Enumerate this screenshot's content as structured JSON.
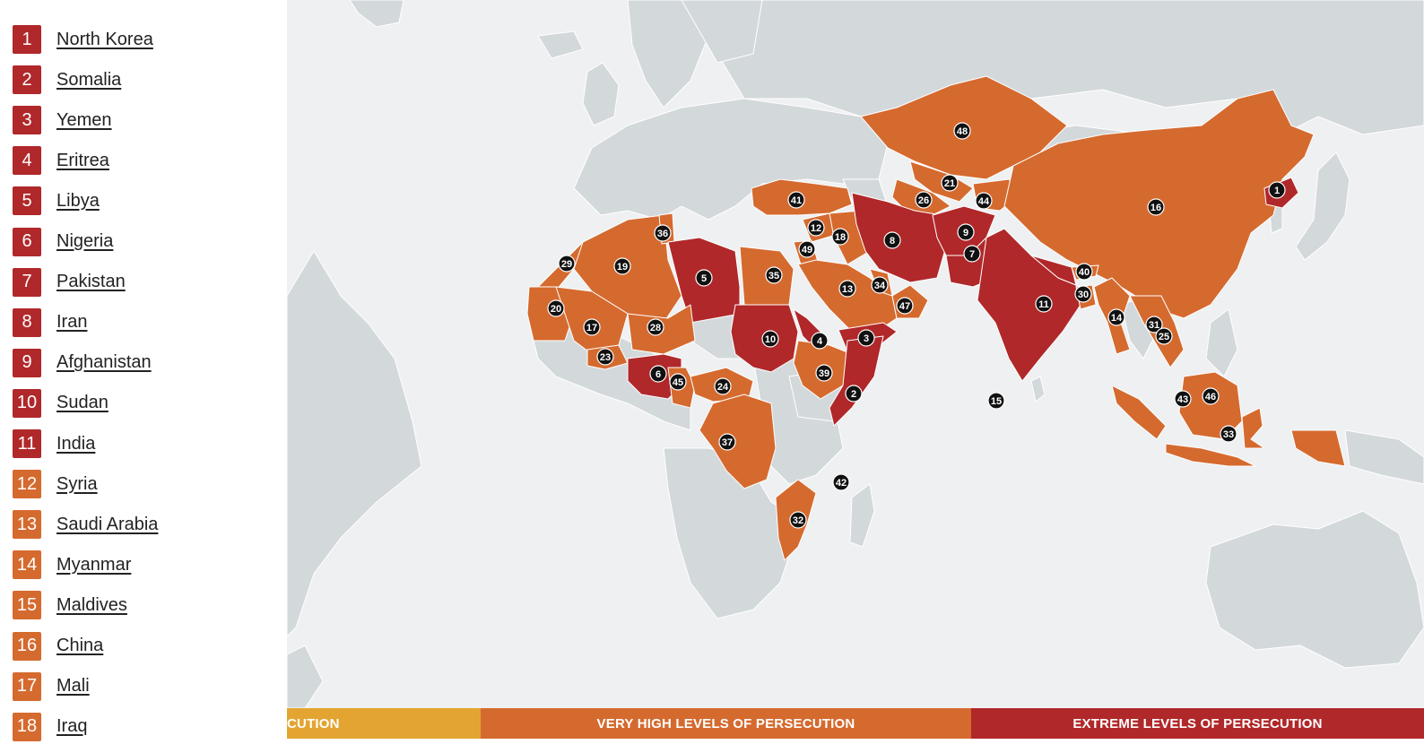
{
  "colors": {
    "extreme": "#B0282A",
    "very_high": "#D56A2F",
    "high": "#E4A431",
    "land": "#D3D8DB",
    "ocean": "#EEF0F1",
    "marker": "#111111"
  },
  "rankings": [
    {
      "rank": "1",
      "name": "North Korea",
      "level": "extreme"
    },
    {
      "rank": "2",
      "name": "Somalia",
      "level": "extreme"
    },
    {
      "rank": "3",
      "name": "Yemen",
      "level": "extreme"
    },
    {
      "rank": "4",
      "name": "Eritrea",
      "level": "extreme"
    },
    {
      "rank": "5",
      "name": "Libya",
      "level": "extreme"
    },
    {
      "rank": "6",
      "name": "Nigeria",
      "level": "extreme"
    },
    {
      "rank": "7",
      "name": "Pakistan",
      "level": "extreme"
    },
    {
      "rank": "8",
      "name": "Iran",
      "level": "extreme"
    },
    {
      "rank": "9",
      "name": "Afghanistan",
      "level": "extreme"
    },
    {
      "rank": "10",
      "name": "Sudan",
      "level": "extreme"
    },
    {
      "rank": "11",
      "name": "India",
      "level": "extreme"
    },
    {
      "rank": "12",
      "name": "Syria",
      "level": "very_high"
    },
    {
      "rank": "13",
      "name": "Saudi Arabia",
      "level": "very_high"
    },
    {
      "rank": "14",
      "name": "Myanmar",
      "level": "very_high"
    },
    {
      "rank": "15",
      "name": "Maldives",
      "level": "very_high"
    },
    {
      "rank": "16",
      "name": "China",
      "level": "very_high"
    },
    {
      "rank": "17",
      "name": "Mali",
      "level": "very_high"
    },
    {
      "rank": "18",
      "name": "Iraq",
      "level": "very_high"
    }
  ],
  "map_markers": [
    "48",
    "21",
    "26",
    "44",
    "41",
    "12",
    "18",
    "49",
    "16",
    "1",
    "8",
    "9",
    "7",
    "36",
    "29",
    "19",
    "5",
    "35",
    "13",
    "34",
    "47",
    "40",
    "30",
    "11",
    "20",
    "17",
    "28",
    "10",
    "4",
    "3",
    "14",
    "31",
    "25",
    "23",
    "6",
    "45",
    "24",
    "39",
    "2",
    "15",
    "43",
    "46",
    "33",
    "37",
    "42",
    "32"
  ],
  "legend": [
    {
      "label": "CUTION",
      "level": "high"
    },
    {
      "label": "VERY HIGH LEVELS OF PERSECUTION",
      "level": "very_high"
    },
    {
      "label": "EXTREME LEVELS OF PERSECUTION",
      "level": "extreme"
    }
  ]
}
